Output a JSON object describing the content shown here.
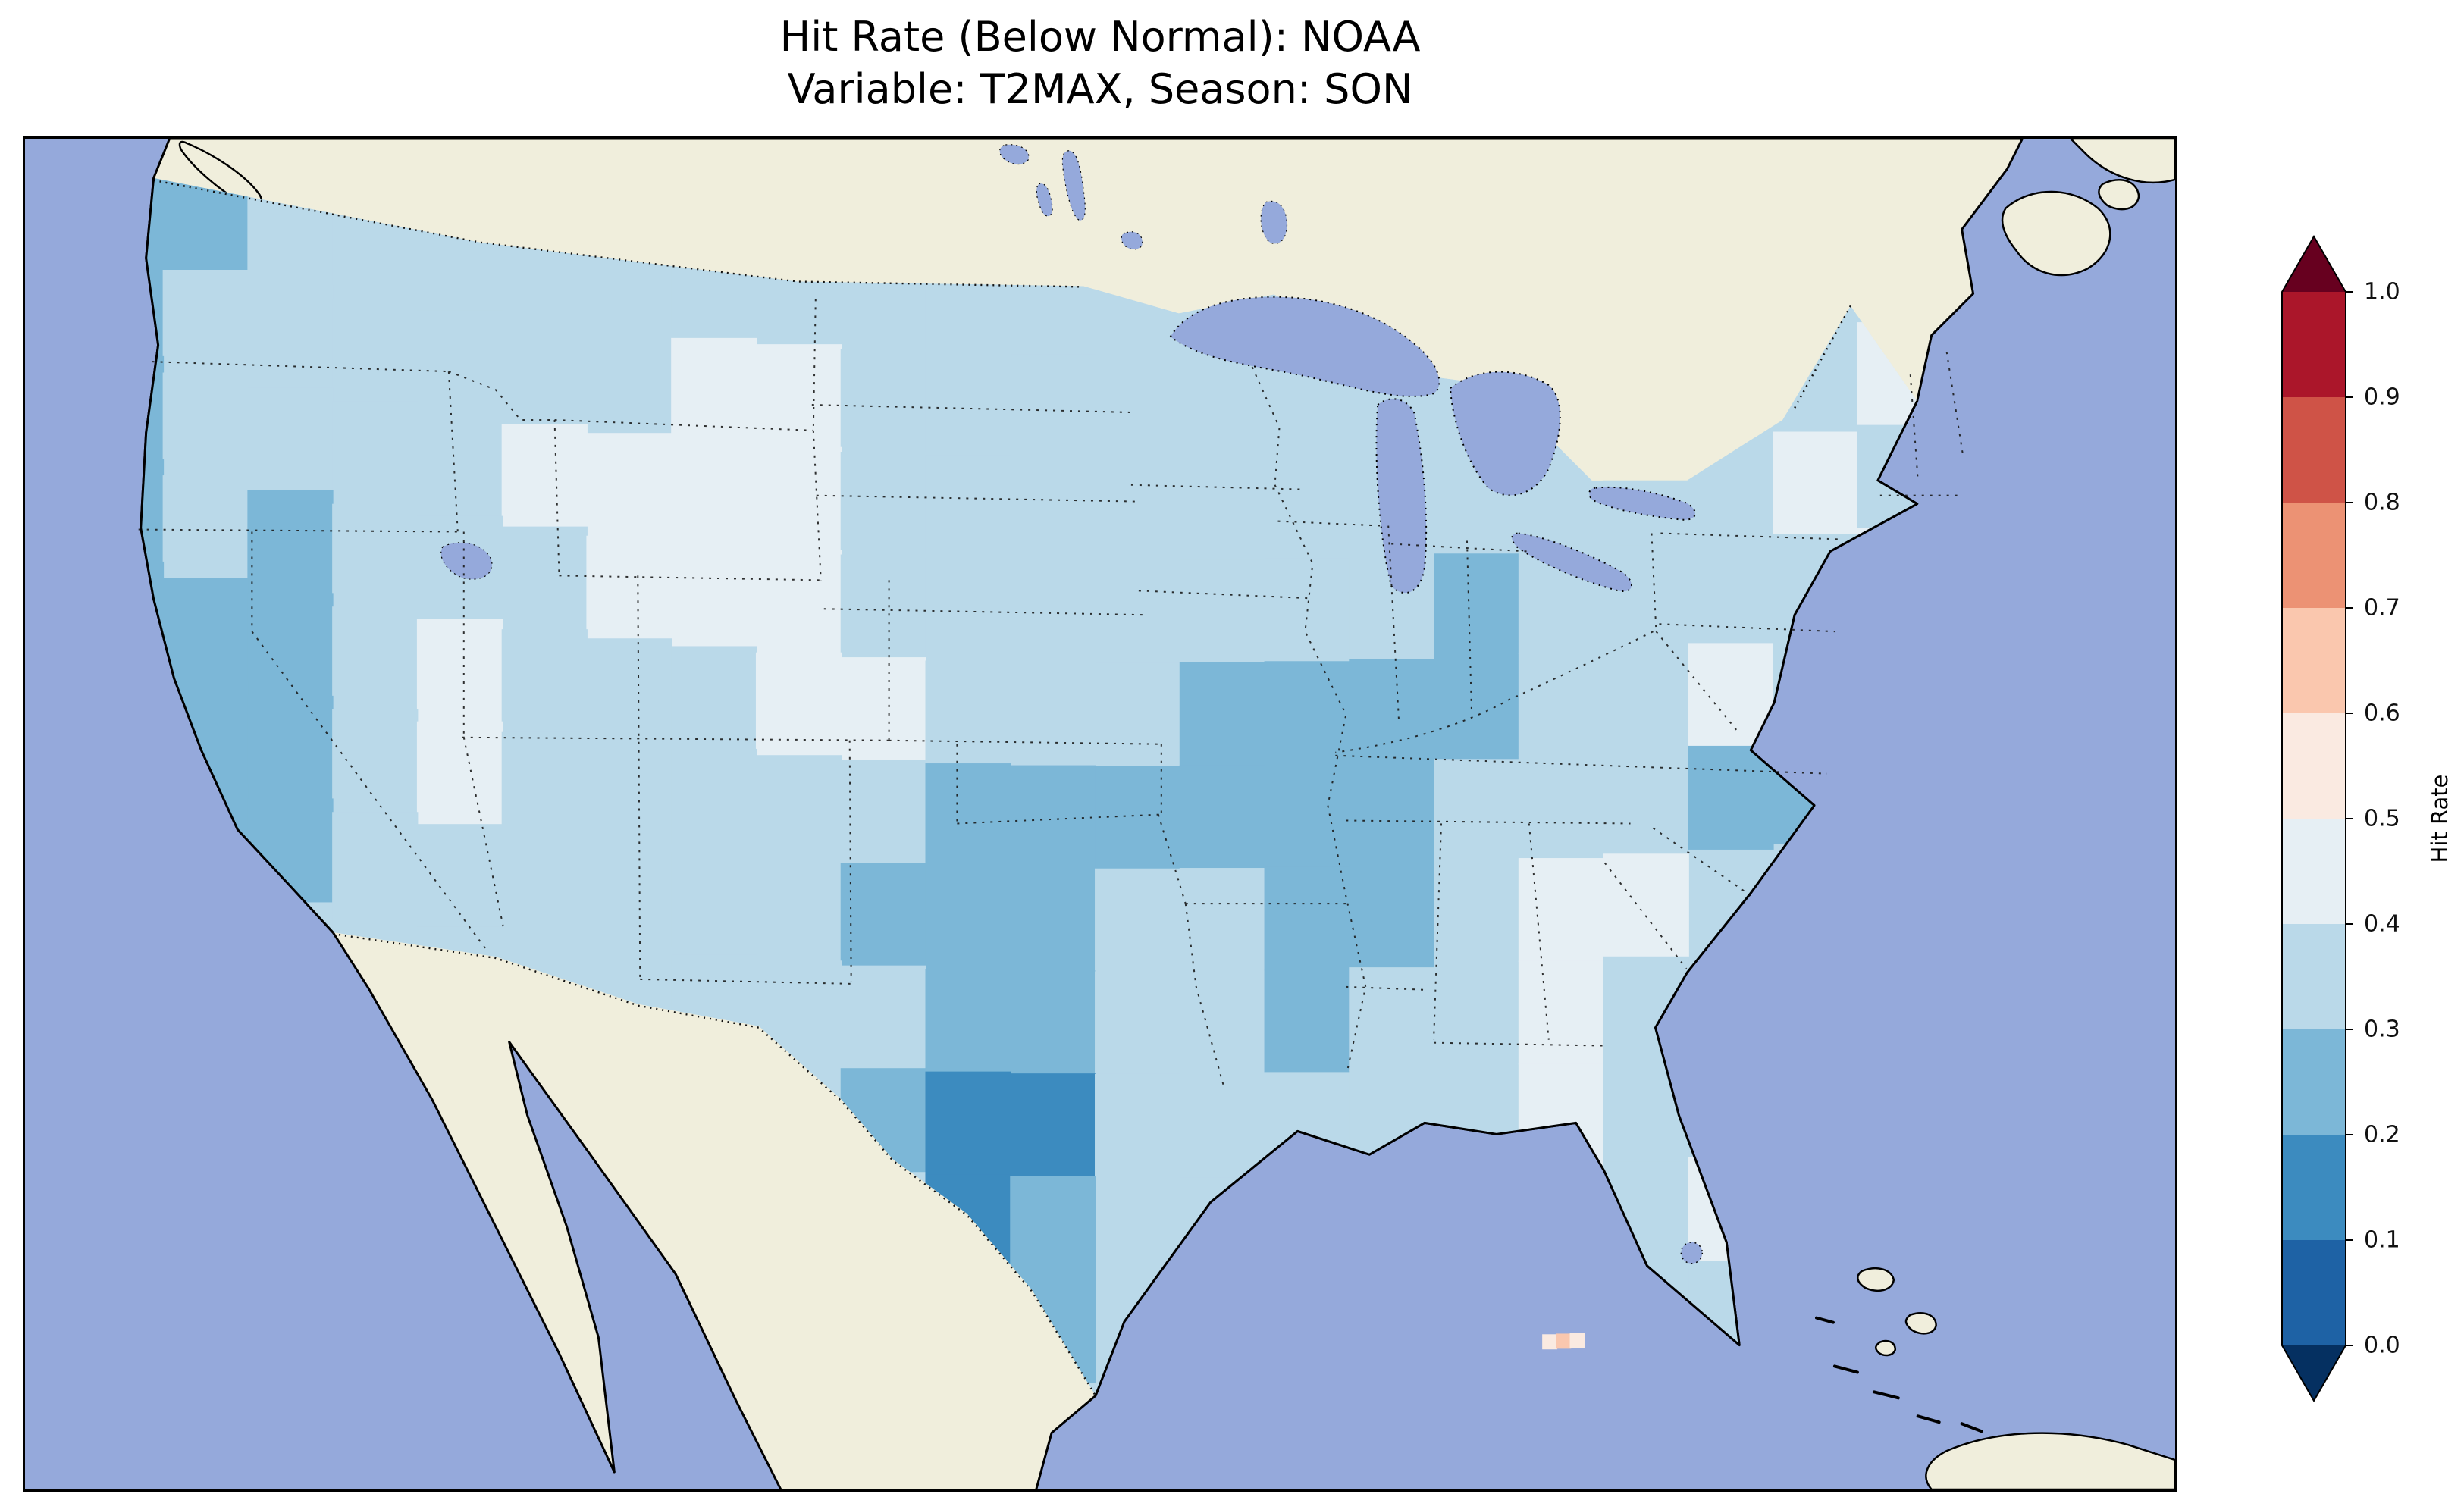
{
  "figure": {
    "title_line1": "Hit Rate (Below Normal): NOAA",
    "title_line2": "Variable: T2MAX, Season: SON"
  },
  "colorbar": {
    "label": "Hit Rate",
    "ticks": [
      "1.0",
      "0.9",
      "0.8",
      "0.7",
      "0.6",
      "0.5",
      "0.4",
      "0.3",
      "0.2",
      "0.1",
      "0.0"
    ],
    "band_colors_low_to_high": [
      "#1e62a5",
      "#3c8bbf",
      "#7cb7d7",
      "#bad9e9",
      "#e6eff4",
      "#faeae1",
      "#fac7ae",
      "#ec9274",
      "#cf5347",
      "#ab162a"
    ],
    "extend_under_color": "#053061",
    "extend_over_color": "#67001f"
  },
  "map": {
    "ocean_color": "#95a9db",
    "land_color": "#f0eedc",
    "water_color": "#95a9db",
    "coastline_color": "#000000",
    "border_style": "dotted"
  },
  "chart_data": {
    "type": "heatmap",
    "title": "Hit Rate (Below Normal): NOAA\nVariable: T2MAX, Season: SON",
    "colorbar_label": "Hit Rate",
    "colorbar_ticks": [
      0.0,
      0.1,
      0.2,
      0.3,
      0.4,
      0.5,
      0.6,
      0.7,
      0.8,
      0.9,
      1.0
    ],
    "colormap": "RdBu_r",
    "bin_width": 0.1,
    "extend": "both",
    "region": "Contiguous United States",
    "projection": "Lambert Conformal (approx.)",
    "observed_value_range": [
      0.1,
      0.7
    ],
    "notes": "Hit rates over CONUS are predominantly 0.2-0.5 (blues). Darkest blues (0.1-0.2) over central/south Texas; dark 0.2-0.3 patches over WA coast, California, Nevada, OK/KS, the Ohio/Tennessee valleys, coastal NC and north MS/AL. Palest cells (0.4-0.5) over MT/WY/NE plains, Utah, Virginia, SC/GA and New England. A few pink cells (0.5-0.7) at the Florida Keys. Values coarsened to a 24x11 grid of 0.1-bin midpoints; null = outside CONUS.",
    "grid": {
      "lon_range": [
        -125,
        -66
      ],
      "lat_range": [
        24,
        50
      ],
      "ncols": 24,
      "nrows": 11,
      "origin": "northwest",
      "values": [
        [
          0.25,
          0.25,
          0.35,
          0.35,
          0.35,
          0.35,
          0.35,
          0.35,
          0.35,
          0.35,
          0.35,
          0.35,
          0.35,
          null,
          null,
          null,
          null,
          null,
          null,
          null,
          null,
          null,
          0.35,
          0.35
        ],
        [
          0.25,
          0.35,
          0.35,
          0.35,
          0.35,
          0.35,
          0.35,
          0.45,
          0.45,
          0.35,
          0.35,
          0.35,
          0.35,
          0.35,
          0.35,
          null,
          null,
          null,
          null,
          null,
          null,
          0.45,
          0.35,
          0.45
        ],
        [
          0.25,
          0.35,
          0.35,
          0.35,
          0.35,
          0.45,
          0.45,
          0.45,
          0.45,
          0.35,
          0.35,
          0.35,
          0.35,
          0.35,
          0.35,
          null,
          0.35,
          null,
          0.35,
          0.35,
          0.45,
          0.35,
          0.35,
          null
        ],
        [
          0.25,
          0.35,
          0.25,
          0.35,
          0.35,
          0.35,
          0.45,
          0.45,
          0.45,
          0.35,
          0.35,
          0.35,
          0.35,
          0.35,
          0.35,
          0.35,
          0.25,
          0.35,
          0.35,
          0.35,
          0.35,
          0.45,
          0.35,
          null
        ],
        [
          0.25,
          0.25,
          0.25,
          0.35,
          0.45,
          0.35,
          0.35,
          0.35,
          0.45,
          0.45,
          0.35,
          0.35,
          0.35,
          0.25,
          0.25,
          0.25,
          0.25,
          0.35,
          0.35,
          0.45,
          0.35,
          null,
          null,
          null
        ],
        [
          null,
          0.25,
          0.25,
          0.35,
          0.45,
          0.35,
          0.35,
          0.35,
          0.35,
          0.35,
          0.25,
          0.25,
          0.25,
          0.25,
          0.25,
          0.25,
          0.35,
          0.35,
          0.35,
          0.25,
          0.25,
          null,
          null,
          null
        ],
        [
          null,
          0.25,
          0.25,
          0.35,
          0.35,
          0.35,
          0.35,
          0.35,
          0.35,
          0.25,
          0.25,
          0.25,
          0.35,
          0.35,
          0.25,
          0.25,
          0.35,
          0.45,
          0.45,
          null,
          null,
          null,
          null,
          null
        ],
        [
          null,
          null,
          null,
          0.35,
          0.35,
          0.35,
          0.35,
          0.35,
          0.35,
          0.35,
          0.25,
          0.25,
          0.35,
          0.35,
          0.25,
          0.35,
          0.35,
          0.45,
          0.35,
          null,
          null,
          null,
          null,
          null
        ],
        [
          null,
          null,
          null,
          null,
          null,
          null,
          null,
          null,
          0.35,
          0.25,
          0.15,
          0.15,
          0.35,
          0.35,
          0.35,
          0.35,
          0.35,
          0.45,
          0.35,
          null,
          null,
          null,
          null,
          null
        ],
        [
          null,
          null,
          null,
          null,
          null,
          null,
          null,
          null,
          null,
          null,
          0.15,
          0.25,
          null,
          null,
          null,
          null,
          null,
          0.45,
          0.35,
          0.45,
          null,
          null,
          null,
          null
        ],
        [
          null,
          null,
          null,
          null,
          null,
          null,
          null,
          null,
          null,
          null,
          null,
          0.25,
          null,
          null,
          null,
          null,
          null,
          null,
          0.35,
          null,
          null,
          null,
          null,
          null
        ]
      ]
    },
    "florida_keys_cells": [
      {
        "lon": -82.3,
        "lat": 24.7,
        "value": 0.55
      },
      {
        "lon": -81.9,
        "lat": 24.7,
        "value": 0.65
      },
      {
        "lon": -81.5,
        "lat": 24.7,
        "value": 0.55
      }
    ]
  }
}
